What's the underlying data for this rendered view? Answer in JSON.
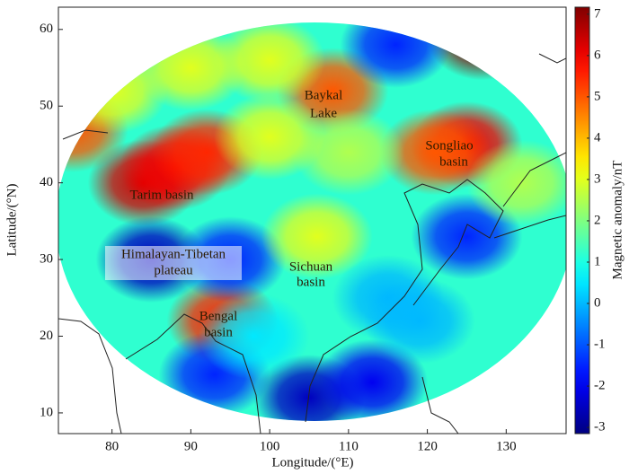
{
  "chart_data": {
    "type": "heatmap",
    "xlabel": "Longitude/(°E)",
    "ylabel": "Latitude/(°N)",
    "colorbar_label": "Magnetic anomaly/nT",
    "xlim": [
      73.2,
      137.6
    ],
    "ylim": [
      7.3,
      62.9
    ],
    "xticks": [
      80,
      90,
      100,
      110,
      120,
      130
    ],
    "yticks": [
      10,
      20,
      30,
      40,
      50,
      60
    ],
    "clim": [
      -3.15,
      7.17
    ],
    "cticks": [
      -3,
      -2,
      -1,
      0,
      1,
      2,
      3,
      4,
      5,
      6,
      7
    ],
    "annotations": [
      "Baykal",
      "Lake",
      "Songliao",
      "basin",
      "Tarim basin",
      "Himalayan-Tibetan",
      "plateau",
      "Sichuan",
      "basin",
      "Bengal",
      "basin"
    ],
    "anomalies": {
      "x": [
        106,
        84,
        88,
        92,
        125,
        121,
        108,
        94,
        75,
        127,
        85,
        95,
        105,
        113,
        93,
        125,
        90,
        100,
        116,
        106,
        115,
        80,
        132,
        98,
        119,
        110,
        100
      ],
      "y": [
        35,
        40,
        42,
        44,
        45,
        44,
        52,
        22,
        47,
        59,
        30,
        30,
        12,
        14,
        15,
        33,
        55,
        56,
        58,
        33,
        25,
        52,
        40,
        20,
        22,
        44,
        46
      ],
      "values": [
        1.2,
        6.3,
        6,
        5.5,
        6,
        5,
        5,
        5.5,
        5,
        7,
        -2.5,
        -1.5,
        -2.5,
        -2,
        -1.5,
        -1.5,
        3,
        3,
        -1.5,
        3,
        0,
        3,
        2.5,
        0.5,
        0,
        2.5,
        3
      ]
    }
  }
}
